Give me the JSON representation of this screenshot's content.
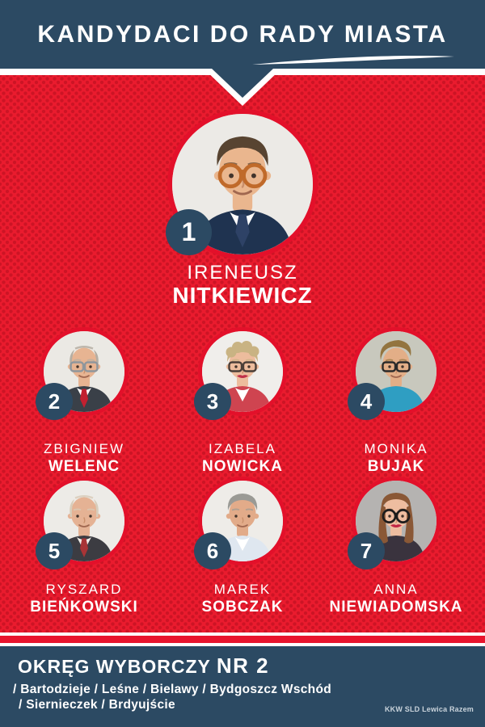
{
  "header": {
    "title": "KANDYDACI DO RADY MIASTA"
  },
  "candidates": [
    {
      "number": "1",
      "first_name": "IRENEUSZ",
      "last_name": "NITKIEWICZ",
      "avatar": {
        "bg": "#eceae6",
        "skin": "#eab68e",
        "hair": "#584431",
        "style": "short",
        "glasses": "#c06a2a",
        "gshape": "round",
        "top": "#1f3350",
        "shirt": "#ffffff",
        "tie": "#2e4266"
      }
    },
    {
      "number": "2",
      "first_name": "ZBIGNIEW",
      "last_name": "WELENC",
      "avatar": {
        "bg": "#ebe9e4",
        "skin": "#e7b492",
        "hair": "#b5aea3",
        "style": "balding",
        "glasses": "#8f969c",
        "gshape": "rect",
        "top": "#3a4048",
        "shirt": "#ffffff",
        "tie": "#c22030"
      }
    },
    {
      "number": "3",
      "first_name": "IZABELA",
      "last_name": "NOWICKA",
      "avatar": {
        "bg": "#f0eeeb",
        "skin": "#edbc9d",
        "hair": "#c9b383",
        "style": "curly",
        "glasses": "#4a3e38",
        "gshape": "rect",
        "top": "#cf4450",
        "shirt": "#ffffff",
        "lips": "#c03049"
      }
    },
    {
      "number": "4",
      "first_name": "MONIKA",
      "last_name": "BUJAK",
      "avatar": {
        "bg": "#c8c8bd",
        "skin": "#e3ae87",
        "hair": "#93743f",
        "style": "quiff",
        "glasses": "#2a2a2a",
        "gshape": "rect",
        "top": "#2f9ec2"
      }
    },
    {
      "number": "5",
      "first_name": "RYSZARD",
      "last_name": "BIEŃKOWSKI",
      "avatar": {
        "bg": "#edebe7",
        "skin": "#e5b294",
        "hair": "#d8cdbb",
        "style": "balding",
        "top": "#3c3c42",
        "shirt": "#f2efe9",
        "tie": "#a83436"
      }
    },
    {
      "number": "6",
      "first_name": "MAREK",
      "last_name": "SOBCZAK",
      "avatar": {
        "bg": "#eeece8",
        "skin": "#e2ab89",
        "hair": "#9a9a95",
        "style": "short",
        "top": "#dfe7f0",
        "shirt": "#ffffff"
      }
    },
    {
      "number": "7",
      "first_name": "ANNA",
      "last_name": "NIEWIADOMSKA",
      "avatar": {
        "bg": "#b5b3b1",
        "skin": "#eebda0",
        "hair": "#8a5836",
        "style": "long",
        "glasses": "#1d1d1d",
        "gshape": "round",
        "top": "#3a333e",
        "lips": "#c22646"
      }
    }
  ],
  "footer": {
    "district_title": "OKRĘG WYBORCZY",
    "district_number": "NR 2",
    "areas_line1": "/ Bartodzieje / Leśne / Bielawy / Bydgoszcz Wschód",
    "areas_line2": "/ Siernieczek / Brdyujście",
    "committee": "KKW SLD Lewica Razem"
  },
  "colors": {
    "navy": "#2c4a63",
    "red_background": "#ea1b2e",
    "red_dot": "#cc1425",
    "ring_red": "#e3102a",
    "stripe_red": "#e8142d",
    "white": "#ffffff"
  }
}
